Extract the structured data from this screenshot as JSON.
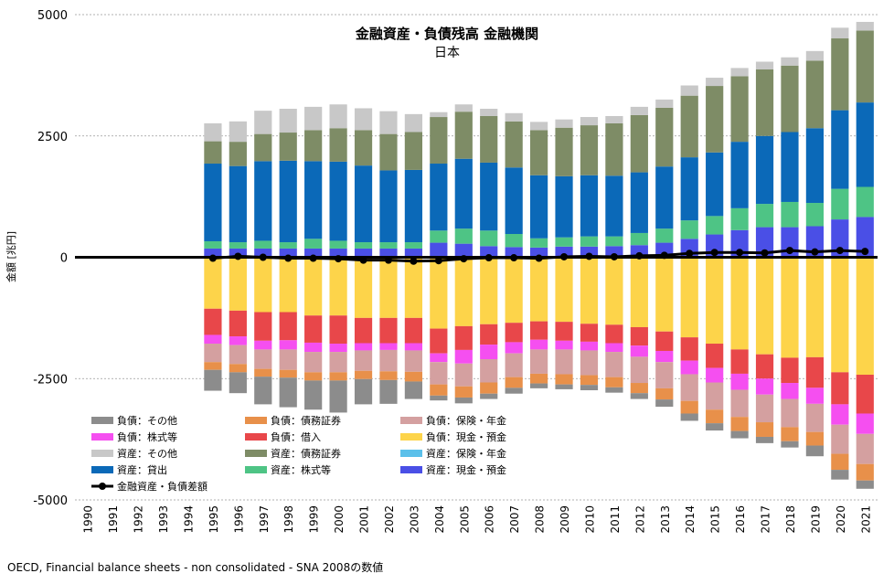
{
  "chart_data": {
    "type": "bar",
    "title": "金融資産・負債残高 金融機関",
    "subtitle": "日本",
    "ylabel": "金額 [兆円]",
    "xlabel": "",
    "ylim": [
      -5000,
      5000
    ],
    "yticks": [
      5000,
      2500,
      0,
      -2500,
      -5000
    ],
    "ytick_labels": [
      "5000",
      "2500",
      "0",
      "-2500",
      "-5000"
    ],
    "grid": true,
    "legend_position": "bottom-left",
    "categories": [
      "1990",
      "1991",
      "1992",
      "1993",
      "1994",
      "1995",
      "1996",
      "1997",
      "1998",
      "1999",
      "2000",
      "2001",
      "2002",
      "2003",
      "2004",
      "2005",
      "2006",
      "2007",
      "2008",
      "2009",
      "2010",
      "2011",
      "2012",
      "2013",
      "2014",
      "2015",
      "2016",
      "2017",
      "2018",
      "2019",
      "2020",
      "2021"
    ],
    "asset_series": [
      {
        "name": "資産：現金・預金",
        "color": "#4a4fe6",
        "values": [
          null,
          null,
          null,
          null,
          null,
          180,
          180,
          180,
          180,
          180,
          180,
          180,
          180,
          180,
          300,
          280,
          230,
          210,
          200,
          220,
          220,
          230,
          250,
          300,
          380,
          470,
          560,
          620,
          620,
          640,
          780,
          830
        ]
      },
      {
        "name": "資産：株式等",
        "color": "#4ec485",
        "values": [
          null,
          null,
          null,
          null,
          null,
          150,
          130,
          160,
          130,
          200,
          160,
          130,
          130,
          130,
          250,
          310,
          320,
          270,
          190,
          190,
          210,
          200,
          250,
          290,
          380,
          380,
          450,
          480,
          520,
          480,
          630,
          620
        ]
      },
      {
        "name": "資産：保険・年金",
        "color": "#5bc0ea",
        "values": [
          null,
          null,
          null,
          null,
          null,
          0,
          0,
          0,
          0,
          0,
          0,
          0,
          0,
          0,
          0,
          0,
          0,
          0,
          0,
          0,
          0,
          0,
          0,
          0,
          0,
          0,
          0,
          0,
          0,
          0,
          0,
          0
        ]
      },
      {
        "name": "資産：貸出",
        "color": "#0b69b8",
        "values": [
          null,
          null,
          null,
          null,
          null,
          1600,
          1570,
          1640,
          1680,
          1600,
          1630,
          1580,
          1480,
          1490,
          1380,
          1440,
          1400,
          1370,
          1300,
          1260,
          1260,
          1250,
          1250,
          1280,
          1300,
          1310,
          1370,
          1400,
          1440,
          1540,
          1620,
          1740
        ]
      },
      {
        "name": "資産：債務証券",
        "color": "#7e8c66",
        "values": [
          null,
          null,
          null,
          null,
          null,
          460,
          500,
          560,
          580,
          640,
          690,
          730,
          750,
          780,
          960,
          970,
          960,
          950,
          930,
          1000,
          1030,
          1080,
          1180,
          1210,
          1270,
          1370,
          1350,
          1370,
          1370,
          1390,
          1480,
          1480
        ]
      },
      {
        "name": "資産：その他",
        "color": "#c8c8c8",
        "values": [
          null,
          null,
          null,
          null,
          null,
          370,
          420,
          480,
          490,
          480,
          490,
          450,
          470,
          370,
          100,
          150,
          150,
          170,
          170,
          170,
          170,
          150,
          170,
          170,
          210,
          170,
          170,
          160,
          170,
          200,
          220,
          180
        ]
      }
    ],
    "liability_series": [
      {
        "name": "負債：現金・預金",
        "color": "#fdd44a",
        "values": [
          null,
          null,
          null,
          null,
          null,
          -1060,
          -1100,
          -1130,
          -1130,
          -1200,
          -1200,
          -1250,
          -1250,
          -1250,
          -1470,
          -1420,
          -1380,
          -1350,
          -1320,
          -1330,
          -1370,
          -1390,
          -1440,
          -1530,
          -1650,
          -1780,
          -1900,
          -2000,
          -2070,
          -2060,
          -2370,
          -2420
        ]
      },
      {
        "name": "負債：借入",
        "color": "#e8474a",
        "values": [
          null,
          null,
          null,
          null,
          null,
          -540,
          -530,
          -590,
          -580,
          -560,
          -580,
          -520,
          -520,
          -520,
          -510,
          -490,
          -420,
          -400,
          -380,
          -390,
          -370,
          -380,
          -380,
          -400,
          -480,
          -500,
          -500,
          -500,
          -520,
          -630,
          -660,
          -800
        ]
      },
      {
        "name": "負債：株式等",
        "color": "#f54ff0",
        "values": [
          null,
          null,
          null,
          null,
          null,
          -180,
          -180,
          -180,
          -190,
          -190,
          -170,
          -150,
          -140,
          -150,
          -180,
          -280,
          -300,
          -230,
          -200,
          -180,
          -180,
          -180,
          -230,
          -230,
          -280,
          -300,
          -330,
          -330,
          -330,
          -330,
          -420,
          -420
        ]
      },
      {
        "name": "負債：保険・年金",
        "color": "#d4a0a0",
        "values": [
          null,
          null,
          null,
          null,
          null,
          -380,
          -390,
          -400,
          -420,
          -420,
          -420,
          -420,
          -440,
          -440,
          -460,
          -470,
          -480,
          -490,
          -500,
          -510,
          -510,
          -520,
          -540,
          -540,
          -550,
          -560,
          -560,
          -570,
          -580,
          -580,
          -600,
          -620
        ]
      },
      {
        "name": "負債：債務証券",
        "color": "#e8904a",
        "values": [
          null,
          null,
          null,
          null,
          null,
          -160,
          -170,
          -160,
          -160,
          -170,
          -170,
          -170,
          -180,
          -200,
          -230,
          -230,
          -230,
          -220,
          -200,
          -210,
          -200,
          -210,
          -210,
          -230,
          -260,
          -280,
          -290,
          -300,
          -290,
          -280,
          -330,
          -340
        ]
      },
      {
        "name": "負債：その他",
        "color": "#8c8c8c",
        "values": [
          null,
          null,
          null,
          null,
          null,
          -430,
          -430,
          -570,
          -610,
          -600,
          -660,
          -520,
          -490,
          -360,
          -100,
          -120,
          -110,
          -120,
          -100,
          -100,
          -110,
          -110,
          -120,
          -150,
          -150,
          -150,
          -150,
          -130,
          -130,
          -220,
          -200,
          -170
        ]
      }
    ],
    "line_series": {
      "name": "金融資産・負債差額",
      "color": "#000000",
      "values": [
        null,
        null,
        null,
        null,
        null,
        -20,
        20,
        0,
        -20,
        -20,
        -30,
        -60,
        -60,
        -80,
        -70,
        -30,
        -10,
        -10,
        -20,
        10,
        20,
        10,
        30,
        40,
        80,
        100,
        100,
        90,
        140,
        110,
        140,
        120
      ]
    },
    "zero_line": {
      "x_start": "1990",
      "x_end": "2021"
    }
  },
  "legend": [
    {
      "label": "負債：その他",
      "color": "#8c8c8c",
      "kind": "bar"
    },
    {
      "label": "負債：債務証券",
      "color": "#e8904a",
      "kind": "bar"
    },
    {
      "label": "負債：保険・年金",
      "color": "#d4a0a0",
      "kind": "bar"
    },
    {
      "label": "負債：株式等",
      "color": "#f54ff0",
      "kind": "bar"
    },
    {
      "label": "負債：借入",
      "color": "#e8474a",
      "kind": "bar"
    },
    {
      "label": "負債：現金・預金",
      "color": "#fdd44a",
      "kind": "bar"
    },
    {
      "label": "資産：その他",
      "color": "#c8c8c8",
      "kind": "bar"
    },
    {
      "label": "資産：債務証券",
      "color": "#7e8c66",
      "kind": "bar"
    },
    {
      "label": "資産：保険・年金",
      "color": "#5bc0ea",
      "kind": "bar"
    },
    {
      "label": "資産：貸出",
      "color": "#0b69b8",
      "kind": "bar"
    },
    {
      "label": "資産：株式等",
      "color": "#4ec485",
      "kind": "bar"
    },
    {
      "label": "資産：現金・預金",
      "color": "#4a4fe6",
      "kind": "bar"
    },
    {
      "label": "金融資産・負債差額",
      "color": "#000000",
      "kind": "line"
    }
  ],
  "source": "OECD, Financial balance sheets - non consolidated - SNA 2008の数値"
}
